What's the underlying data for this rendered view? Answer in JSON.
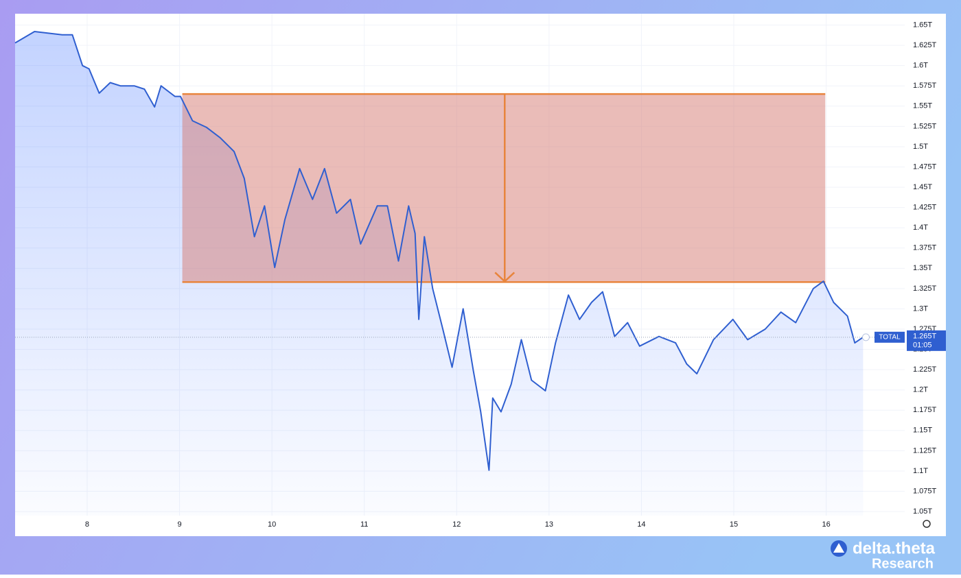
{
  "chart_data": {
    "type": "area",
    "symbol": "TOTAL",
    "color": "#2f5fd0",
    "x": [
      7.22,
      7.43,
      7.73,
      7.84,
      7.95,
      8.02,
      8.13,
      8.25,
      8.36,
      8.51,
      8.62,
      8.73,
      8.8,
      8.95,
      9.01,
      9.14,
      9.29,
      9.44,
      9.59,
      9.7,
      9.81,
      9.92,
      10.03,
      10.14,
      10.3,
      10.44,
      10.57,
      10.7,
      10.85,
      10.96,
      11.14,
      11.25,
      11.37,
      11.48,
      11.55,
      11.59,
      11.65,
      11.74,
      11.85,
      11.95,
      12.07,
      12.18,
      12.26,
      12.35,
      12.39,
      12.48,
      12.59,
      12.7,
      12.81,
      12.96,
      13.07,
      13.21,
      13.33,
      13.46,
      13.58,
      13.71,
      13.85,
      13.98,
      14.19,
      14.37,
      14.49,
      14.6,
      14.78,
      14.99,
      15.15,
      15.34,
      15.51,
      15.67,
      15.86,
      15.97,
      16.08,
      16.23,
      16.31,
      16.4
    ],
    "values": [
      1.628,
      1.642,
      1.638,
      1.638,
      1.6,
      1.596,
      1.566,
      1.579,
      1.575,
      1.575,
      1.571,
      1.549,
      1.575,
      1.562,
      1.562,
      1.532,
      1.524,
      1.511,
      1.494,
      1.461,
      1.389,
      1.427,
      1.351,
      1.41,
      1.473,
      1.435,
      1.473,
      1.418,
      1.435,
      1.38,
      1.427,
      1.427,
      1.359,
      1.427,
      1.393,
      1.287,
      1.389,
      1.325,
      1.275,
      1.228,
      1.3,
      1.224,
      1.173,
      1.101,
      1.19,
      1.173,
      1.207,
      1.262,
      1.212,
      1.199,
      1.258,
      1.317,
      1.287,
      1.308,
      1.321,
      1.266,
      1.283,
      1.254,
      1.266,
      1.258,
      1.232,
      1.22,
      1.262,
      1.287,
      1.262,
      1.275,
      1.296,
      1.283,
      1.325,
      1.334,
      1.308,
      1.291,
      1.258,
      1.265
    ],
    "xlim": [
      7.22,
      16.85
    ],
    "xticks": [
      8,
      9,
      10,
      11,
      12,
      13,
      14,
      15,
      16
    ],
    "ylim": [
      1.045,
      1.664
    ],
    "yticks": [
      {
        "value": 1.05,
        "label": "1.05T"
      },
      {
        "value": 1.075,
        "label": "1.075T"
      },
      {
        "value": 1.1,
        "label": "1.1T"
      },
      {
        "value": 1.125,
        "label": "1.125T"
      },
      {
        "value": 1.15,
        "label": "1.15T"
      },
      {
        "value": 1.175,
        "label": "1.175T"
      },
      {
        "value": 1.2,
        "label": "1.2T"
      },
      {
        "value": 1.225,
        "label": "1.225T"
      },
      {
        "value": 1.25,
        "label": "1.25T"
      },
      {
        "value": 1.275,
        "label": "1.275T"
      },
      {
        "value": 1.3,
        "label": "1.3T"
      },
      {
        "value": 1.325,
        "label": "1.325T"
      },
      {
        "value": 1.35,
        "label": "1.35T"
      },
      {
        "value": 1.375,
        "label": "1.375T"
      },
      {
        "value": 1.4,
        "label": "1.4T"
      },
      {
        "value": 1.425,
        "label": "1.425T"
      },
      {
        "value": 1.45,
        "label": "1.45T"
      },
      {
        "value": 1.475,
        "label": "1.475T"
      },
      {
        "value": 1.5,
        "label": "1.5T"
      },
      {
        "value": 1.525,
        "label": "1.525T"
      },
      {
        "value": 1.55,
        "label": "1.55T"
      },
      {
        "value": 1.575,
        "label": "1.575T"
      },
      {
        "value": 1.6,
        "label": "1.6T"
      },
      {
        "value": 1.625,
        "label": "1.625T"
      },
      {
        "value": 1.65,
        "label": "1.65T"
      }
    ],
    "grid": true,
    "last_price": {
      "value": 1.265,
      "label": "1.265T"
    },
    "countdown": "01:05",
    "measure_box": {
      "x": [
        9.03,
        15.99
      ],
      "y": [
        1.333,
        1.565
      ],
      "arrow_x": 12.52,
      "color": "#e8843c"
    }
  },
  "branding": {
    "name": "delta.theta",
    "subtitle": "Research"
  }
}
